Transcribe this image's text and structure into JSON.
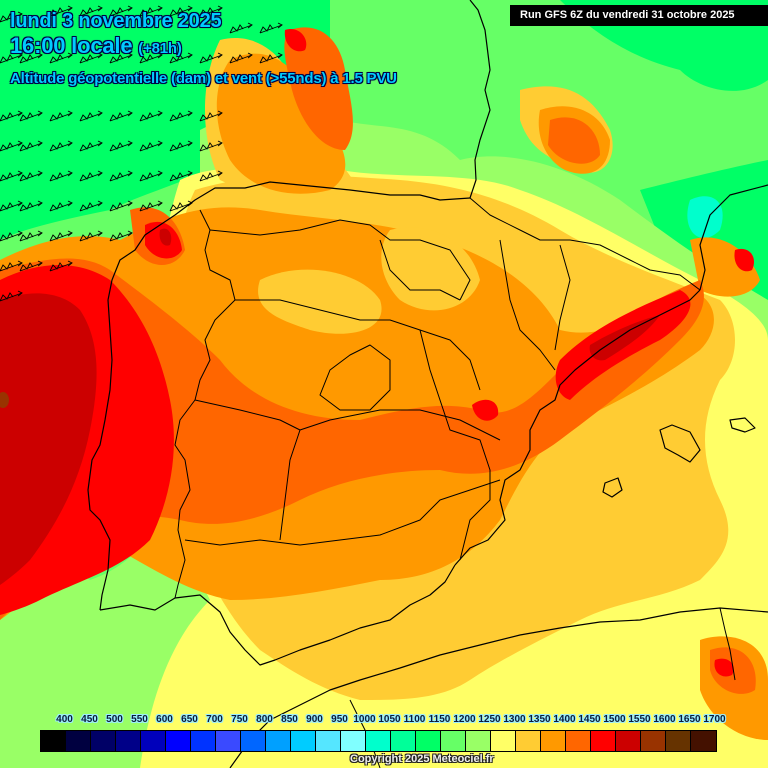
{
  "header": {
    "date": "lundi 3 novembre 2025",
    "time": "16:00 locale",
    "lead": "(+81h)",
    "variable": "Altitude géopotentielle (dam) et vent (>55nds) à 1.5 PVU"
  },
  "run_label": "Run GFS 6Z du vendredi 31 octobre 2025",
  "copyright": "Copyright 2025 Meteociel.fr",
  "legend": {
    "labels": [
      "400",
      "450",
      "500",
      "550",
      "600",
      "650",
      "700",
      "750",
      "800",
      "850",
      "900",
      "950",
      "1000",
      "1050",
      "1100",
      "1150",
      "1200",
      "1250",
      "1300",
      "1350",
      "1400",
      "1450",
      "1500",
      "1550",
      "1600",
      "1650",
      "1700"
    ],
    "colors": [
      "#000000",
      "#000040",
      "#000066",
      "#000088",
      "#0000bb",
      "#0000ff",
      "#0033ff",
      "#3a4aff",
      "#0066ff",
      "#00a0ff",
      "#00ccff",
      "#55e6ff",
      "#80ffff",
      "#00ffcc",
      "#00ff99",
      "#00ff66",
      "#66ff66",
      "#99ff66",
      "#ffff66",
      "#ffcc33",
      "#ff9900",
      "#ff6600",
      "#ff0000",
      "#cc0000",
      "#993300",
      "#663300",
      "#441100"
    ]
  },
  "map": {
    "region": "Iberian Peninsula and Western Mediterranean",
    "features": [
      "wind-barbs",
      "coastlines",
      "national-borders",
      "regional-borders",
      "geopotential-height-shading"
    ]
  },
  "palette": {
    "green": "#66ff66",
    "light_green": "#99ff66",
    "aqua_green": "#00ff66",
    "yellow": "#ffff66",
    "light_orange": "#ffcc33",
    "orange": "#ff9900",
    "dark_orange": "#ff6600",
    "red": "#ff0000",
    "dark_red": "#cc0000",
    "brown": "#993300"
  }
}
